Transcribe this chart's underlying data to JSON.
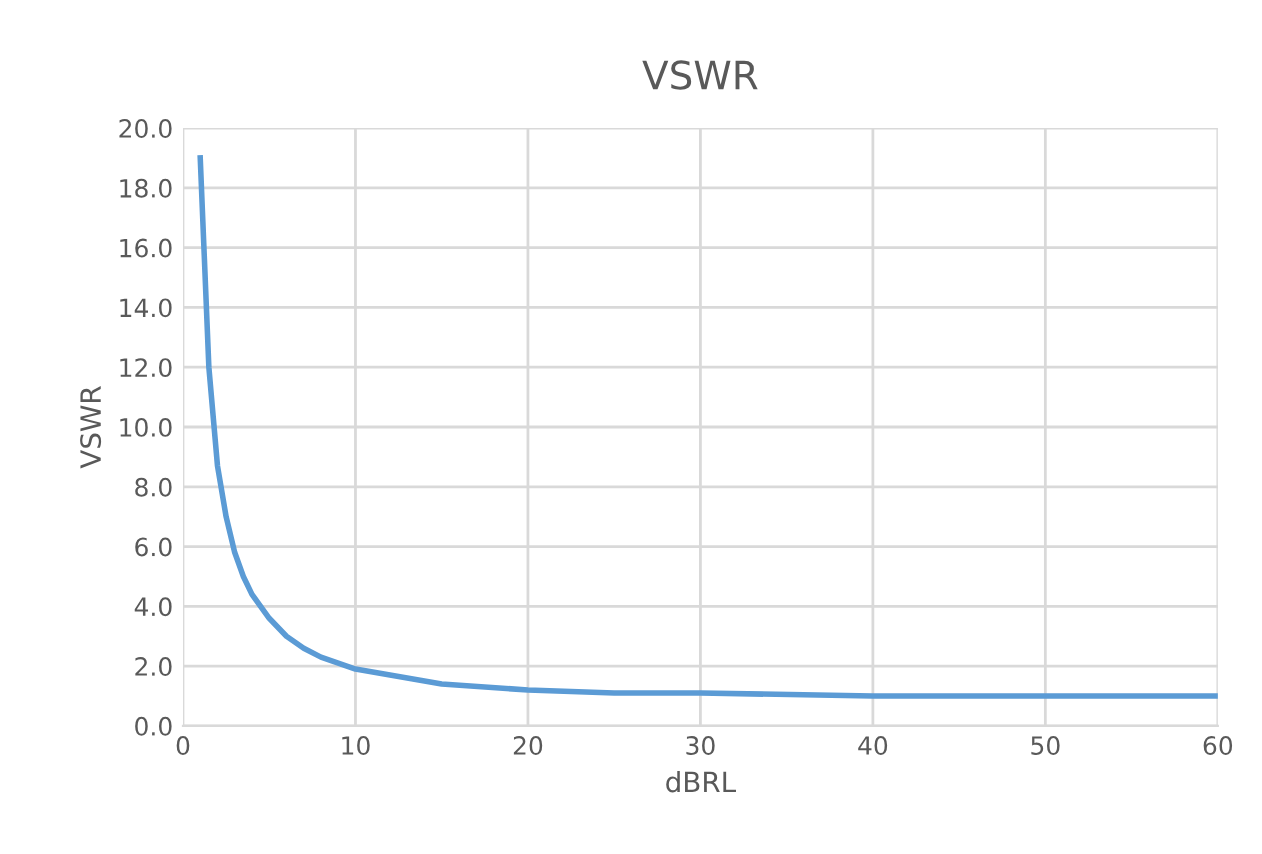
{
  "chart_data": {
    "type": "line",
    "title": "VSWR",
    "xlabel": "dBRL",
    "ylabel": "VSWR",
    "series": [
      {
        "color": "#5b9bd5",
        "x": [
          1,
          1.5,
          2,
          2.5,
          3,
          3.5,
          4,
          5,
          6,
          7,
          8,
          10,
          12,
          15,
          20,
          25,
          30,
          40,
          50,
          60
        ],
        "values": [
          19.0,
          12.0,
          8.7,
          7.0,
          5.8,
          5.0,
          4.4,
          3.6,
          3.0,
          2.6,
          2.3,
          1.9,
          1.7,
          1.4,
          1.2,
          1.1,
          1.1,
          1.0,
          1.0,
          1.0
        ]
      }
    ],
    "xlim": [
      0,
      60
    ],
    "xticks": [
      0,
      10,
      20,
      30,
      40,
      50,
      60
    ],
    "ylim": [
      0,
      20
    ],
    "yticks": [
      {
        "value": 0,
        "label": "0.0"
      },
      {
        "value": 2,
        "label": "2.0"
      },
      {
        "value": 4,
        "label": "4.0"
      },
      {
        "value": 6,
        "label": "6.0"
      },
      {
        "value": 8,
        "label": "8.0"
      },
      {
        "value": 10,
        "label": "10.0"
      },
      {
        "value": 12,
        "label": "12.0"
      },
      {
        "value": 14,
        "label": "14.0"
      },
      {
        "value": 16,
        "label": "16.0"
      },
      {
        "value": 18,
        "label": "18.0"
      },
      {
        "value": 20,
        "label": "20.0"
      }
    ],
    "grid": true,
    "marker": "none",
    "line_style": "solid"
  }
}
